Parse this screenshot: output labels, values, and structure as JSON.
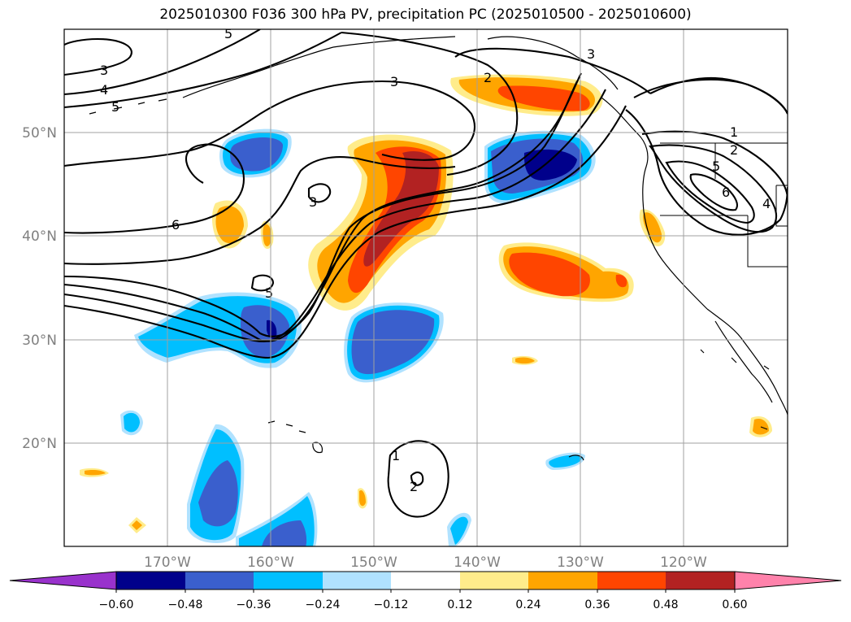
{
  "title": "2025010300 F036 300 hPa PV, precipitation PC (2025010500 - 2025010600)",
  "colors": {
    "neg060": "#9932cc",
    "neg048": "#00008b",
    "neg036": "#3a5fcd",
    "neg024": "#00bfff",
    "neg012": "#b0e2ff",
    "zero": "#ffffff",
    "pos012": "#ffec8b",
    "pos024": "#ffa500",
    "pos036": "#ff4500",
    "pos048": "#b22222",
    "pos060": "#ff82ab"
  },
  "lat_ticks": [
    "50°N",
    "40°N",
    "30°N",
    "20°N"
  ],
  "lon_ticks": [
    "170°W",
    "160°W",
    "150°W",
    "140°W",
    "130°W",
    "120°W"
  ],
  "colorbar": {
    "ticks": [
      "−0.60",
      "−0.48",
      "−0.36",
      "−0.24",
      "−0.12",
      "0.12",
      "0.24",
      "0.36",
      "0.48",
      "0.60"
    ]
  },
  "pv_contour_labels": [
    "5",
    "3",
    "4",
    "5",
    "3",
    "2",
    "3",
    "6",
    "3",
    "5",
    "1",
    "2",
    "5",
    "6",
    "4",
    "1",
    "2"
  ]
}
